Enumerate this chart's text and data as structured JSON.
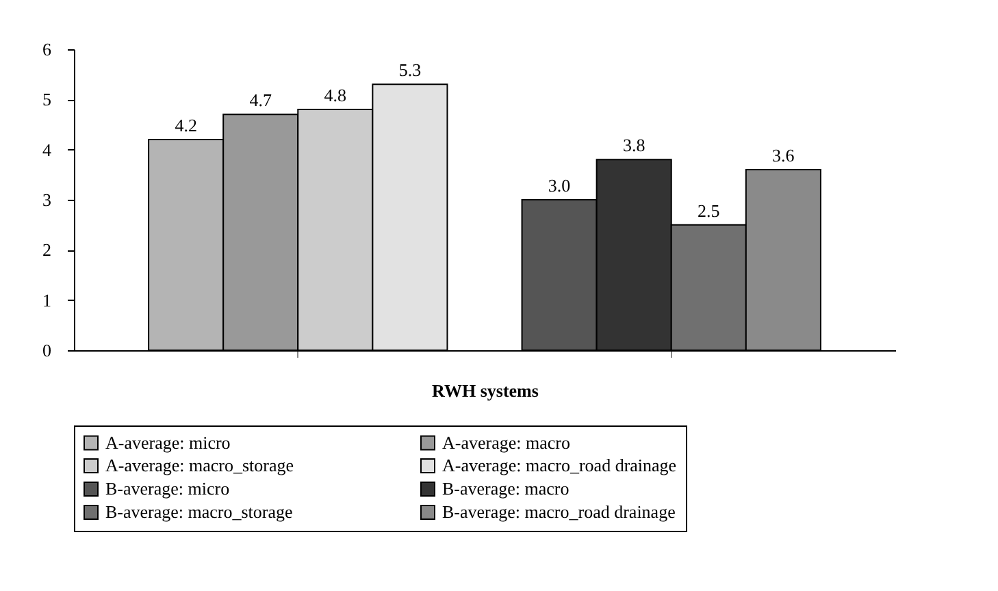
{
  "chart_data": {
    "type": "bar",
    "xlabel": "RWH systems",
    "categories": [
      null,
      null
    ],
    "series": [
      {
        "name": "A-average: micro",
        "color": "#b4b4b4",
        "values": [
          4.2,
          null
        ]
      },
      {
        "name": "A-average: macro",
        "color": "#999999",
        "values": [
          4.7,
          null
        ]
      },
      {
        "name": "A-average: macro_storage",
        "color": "#cccccc",
        "values": [
          4.8,
          null
        ]
      },
      {
        "name": "A-average: macro_road drainage",
        "color": "#e2e2e2",
        "values": [
          5.3,
          null
        ]
      },
      {
        "name": "B-average: micro",
        "color": "#555555",
        "values": [
          null,
          3.0
        ],
        "value_labels": [
          null,
          "3.0"
        ]
      },
      {
        "name": "B-average: macro",
        "color": "#333333",
        "values": [
          null,
          3.8
        ]
      },
      {
        "name": "B-average: macro_storage",
        "color": "#707070",
        "values": [
          null,
          2.5
        ]
      },
      {
        "name": "B-average: macro_road drainage",
        "color": "#8a8a8a",
        "values": [
          null,
          3.6
        ]
      }
    ],
    "ylim": [
      0,
      6
    ],
    "yticks": [
      0,
      1,
      2,
      3,
      4,
      5,
      6
    ],
    "grid": false,
    "legend": "bottom",
    "data_labels": true,
    "tick_labels": "y"
  }
}
